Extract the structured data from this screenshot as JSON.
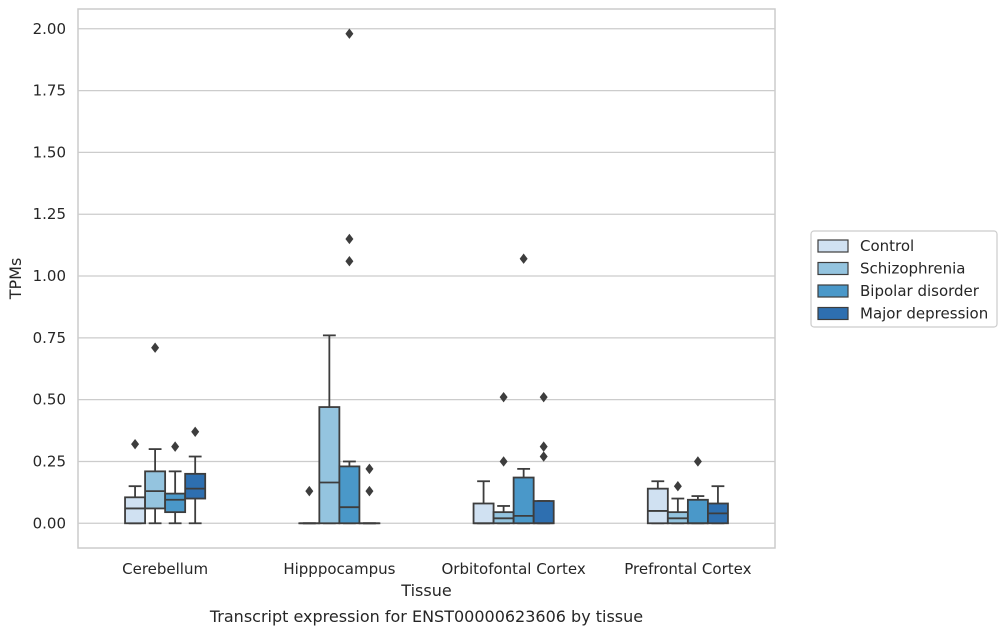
{
  "chart_data": {
    "type": "box",
    "title": "",
    "caption": "Transcript expression for ENST00000623606 by tissue",
    "xlabel": "Tissue",
    "ylabel": "TPMs",
    "ylim": [
      -0.1,
      2.08
    ],
    "yticks": [
      "0.00",
      "0.25",
      "0.50",
      "0.75",
      "1.00",
      "1.25",
      "1.50",
      "1.75",
      "2.00"
    ],
    "ytick_values": [
      0,
      0.25,
      0.5,
      0.75,
      1.0,
      1.25,
      1.5,
      1.75,
      2.0
    ],
    "grid": "horizontal",
    "legend_position": "right",
    "categories": [
      "Cerebellum",
      "Hipppocampus",
      "Orbitofontal Cortex",
      "Prefrontal Cortex"
    ],
    "series": [
      {
        "name": "Control",
        "color": "#d0e1f2",
        "boxes": [
          {
            "whislo": 0.0,
            "q1": 0.0,
            "med": 0.06,
            "q3": 0.105,
            "whishi": 0.15,
            "fliers": [
              0.32
            ]
          },
          {
            "whislo": 0.0,
            "q1": 0.0,
            "med": 0.0,
            "q3": 0.0,
            "whishi": 0.0,
            "fliers": [
              0.13
            ]
          },
          {
            "whislo": 0.0,
            "q1": 0.0,
            "med": 0.0,
            "q3": 0.08,
            "whishi": 0.17,
            "fliers": []
          },
          {
            "whislo": 0.0,
            "q1": 0.0,
            "med": 0.05,
            "q3": 0.14,
            "whishi": 0.17,
            "fliers": []
          }
        ]
      },
      {
        "name": "Schizophrenia",
        "color": "#94c4df",
        "boxes": [
          {
            "whislo": 0.0,
            "q1": 0.06,
            "med": 0.13,
            "q3": 0.21,
            "whishi": 0.3,
            "fliers": [
              0.71
            ]
          },
          {
            "whislo": 0.0,
            "q1": 0.0,
            "med": 0.165,
            "q3": 0.47,
            "whishi": 0.76,
            "fliers": []
          },
          {
            "whislo": 0.0,
            "q1": 0.0,
            "med": 0.02,
            "q3": 0.045,
            "whishi": 0.07,
            "fliers": [
              0.25,
              0.51
            ]
          },
          {
            "whislo": 0.0,
            "q1": 0.0,
            "med": 0.02,
            "q3": 0.045,
            "whishi": 0.1,
            "fliers": [
              0.15
            ]
          }
        ]
      },
      {
        "name": "Bipolar disorder",
        "color": "#4a98c9",
        "boxes": [
          {
            "whislo": 0.0,
            "q1": 0.045,
            "med": 0.095,
            "q3": 0.12,
            "whishi": 0.21,
            "fliers": [
              0.31
            ]
          },
          {
            "whislo": 0.0,
            "q1": 0.0,
            "med": 0.065,
            "q3": 0.23,
            "whishi": 0.25,
            "fliers": [
              1.06,
              1.15,
              1.98
            ]
          },
          {
            "whislo": 0.0,
            "q1": 0.0,
            "med": 0.03,
            "q3": 0.185,
            "whishi": 0.22,
            "fliers": [
              1.07
            ]
          },
          {
            "whislo": 0.0,
            "q1": 0.0,
            "med": 0.0,
            "q3": 0.095,
            "whishi": 0.11,
            "fliers": [
              0.25
            ]
          }
        ]
      },
      {
        "name": "Major depression",
        "color": "#2e6fb0",
        "boxes": [
          {
            "whislo": 0.0,
            "q1": 0.1,
            "med": 0.14,
            "q3": 0.2,
            "whishi": 0.27,
            "fliers": [
              0.37
            ]
          },
          {
            "whislo": 0.0,
            "q1": 0.0,
            "med": 0.0,
            "q3": 0.0,
            "whishi": 0.0,
            "fliers": [
              0.13,
              0.22
            ]
          },
          {
            "whislo": 0.0,
            "q1": 0.0,
            "med": 0.0,
            "q3": 0.09,
            "whishi": 0.09,
            "fliers": [
              0.27,
              0.31,
              0.51
            ]
          },
          {
            "whislo": 0.0,
            "q1": 0.0,
            "med": 0.04,
            "q3": 0.08,
            "whishi": 0.15,
            "fliers": []
          }
        ]
      }
    ]
  }
}
